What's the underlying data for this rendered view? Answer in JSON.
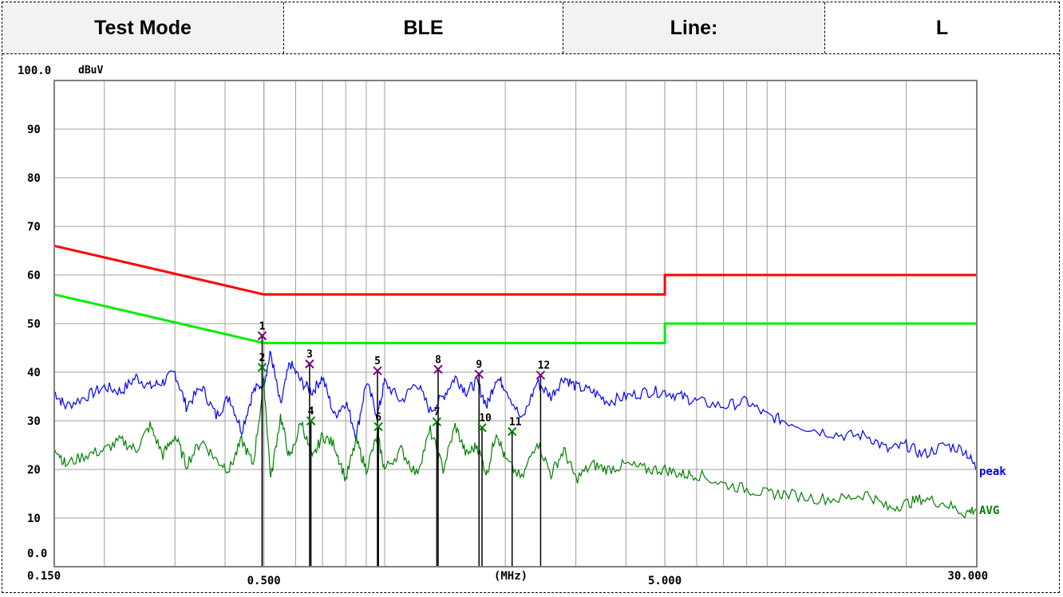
{
  "header": {
    "cells": [
      {
        "text": "Test Mode"
      },
      {
        "text": "BLE"
      },
      {
        "text": "Line:"
      },
      {
        "text": "L"
      }
    ]
  },
  "chart_data": {
    "type": "line",
    "title": "",
    "xlabel": "(MHz)",
    "ylabel": "dBuV",
    "x_scale": "log",
    "xlim": [
      0.15,
      30
    ],
    "ylim": [
      0,
      100
    ],
    "grid": true,
    "x_tick_labels": [
      {
        "value": 0.15,
        "label": "0.150"
      },
      {
        "value": 0.5,
        "label": "0.500"
      },
      {
        "value": 5,
        "label": "5.000"
      },
      {
        "value": 30,
        "label": "30.000"
      }
    ],
    "y_tick_labels": [
      {
        "value": 100,
        "label": "100.0"
      },
      {
        "value": 90,
        "label": "90"
      },
      {
        "value": 80,
        "label": "80"
      },
      {
        "value": 70,
        "label": "70"
      },
      {
        "value": 60,
        "label": "60"
      },
      {
        "value": 50,
        "label": "50"
      },
      {
        "value": 40,
        "label": "40"
      },
      {
        "value": 30,
        "label": "30"
      },
      {
        "value": 20,
        "label": "20"
      },
      {
        "value": 10,
        "label": "10"
      },
      {
        "value": 0,
        "label": "0.0"
      }
    ],
    "limit_lines": [
      {
        "color": "#ff0000",
        "points": [
          [
            0.15,
            66
          ],
          [
            0.5,
            56
          ],
          [
            5,
            56
          ],
          [
            5,
            60
          ],
          [
            30,
            60
          ]
        ]
      },
      {
        "color": "#00ee00",
        "points": [
          [
            0.15,
            56
          ],
          [
            0.5,
            46
          ],
          [
            5,
            46
          ],
          [
            5,
            50
          ],
          [
            30,
            50
          ]
        ]
      }
    ],
    "series": [
      {
        "name": "peak",
        "color": "#0000ff",
        "x": [
          0.15,
          0.16,
          0.18,
          0.2,
          0.22,
          0.24,
          0.26,
          0.28,
          0.3,
          0.32,
          0.35,
          0.38,
          0.41,
          0.44,
          0.47,
          0.5,
          0.52,
          0.55,
          0.58,
          0.62,
          0.66,
          0.7,
          0.75,
          0.8,
          0.85,
          0.9,
          0.96,
          1.0,
          1.1,
          1.2,
          1.3,
          1.4,
          1.5,
          1.6,
          1.7,
          1.8,
          1.9,
          2.0,
          2.2,
          2.4,
          2.6,
          2.8,
          3.0,
          3.3,
          3.6,
          4.0,
          4.5,
          5.0,
          5.5,
          6.0,
          7.0,
          8.0,
          9.0,
          10.0,
          12.0,
          14.0,
          16.0,
          18.0,
          20.0,
          22.0,
          25.0,
          28.0,
          30.0
        ],
        "y": [
          36,
          33,
          35,
          37,
          36,
          39,
          37,
          38,
          40,
          33,
          37,
          31,
          35,
          28,
          36,
          38,
          44,
          33,
          42,
          38,
          36,
          39,
          31,
          34,
          27,
          38,
          31,
          38,
          34,
          38,
          32,
          35,
          39,
          36,
          38,
          33,
          39,
          37,
          30,
          38,
          35,
          39,
          37,
          36,
          34,
          35,
          36,
          36,
          35,
          34,
          33,
          34,
          31,
          30,
          28,
          27,
          27,
          24,
          25,
          23,
          25,
          24,
          20
        ]
      },
      {
        "name": "AVG",
        "color": "#008000",
        "x": [
          0.15,
          0.16,
          0.18,
          0.2,
          0.22,
          0.24,
          0.26,
          0.28,
          0.3,
          0.32,
          0.35,
          0.38,
          0.41,
          0.44,
          0.47,
          0.5,
          0.52,
          0.55,
          0.58,
          0.62,
          0.66,
          0.7,
          0.75,
          0.8,
          0.85,
          0.9,
          0.96,
          1.0,
          1.1,
          1.2,
          1.3,
          1.4,
          1.5,
          1.6,
          1.7,
          1.8,
          1.9,
          2.0,
          2.2,
          2.4,
          2.6,
          2.8,
          3.0,
          3.3,
          3.6,
          4.0,
          4.5,
          5.0,
          5.5,
          6.0,
          7.0,
          8.0,
          9.0,
          10.0,
          12.0,
          14.0,
          16.0,
          18.0,
          20.0,
          22.0,
          25.0,
          28.0,
          30.0
        ],
        "y": [
          25,
          21,
          23,
          24,
          26,
          24,
          29,
          23,
          27,
          21,
          26,
          22,
          20,
          26,
          21,
          38,
          18,
          31,
          22,
          30,
          22,
          27,
          25,
          18,
          26,
          20,
          27,
          20,
          24,
          19,
          28,
          20,
          29,
          23,
          25,
          19,
          28,
          22,
          18,
          26,
          19,
          24,
          18,
          21,
          20,
          21,
          20,
          20,
          19,
          19,
          17,
          16,
          15,
          15,
          14,
          14,
          15,
          12,
          13,
          14,
          13,
          11,
          12
        ]
      }
    ],
    "markers": [
      {
        "label": "1",
        "x": 0.495,
        "y": 47.5,
        "type": "peak"
      },
      {
        "label": "2",
        "x": 0.495,
        "y": 41,
        "type": "avg"
      },
      {
        "label": "3",
        "x": 0.65,
        "y": 41.7,
        "type": "peak"
      },
      {
        "label": "4",
        "x": 0.655,
        "y": 30,
        "type": "avg"
      },
      {
        "label": "5",
        "x": 0.96,
        "y": 40.3,
        "type": "peak"
      },
      {
        "label": "6",
        "x": 0.965,
        "y": 28.8,
        "type": "avg"
      },
      {
        "label": "7",
        "x": 1.35,
        "y": 29.8,
        "type": "avg"
      },
      {
        "label": "8",
        "x": 1.36,
        "y": 40.6,
        "type": "peak"
      },
      {
        "label": "9",
        "x": 1.72,
        "y": 39.6,
        "type": "peak"
      },
      {
        "label": "10",
        "x": 1.75,
        "y": 28.6,
        "type": "avg"
      },
      {
        "label": "11",
        "x": 2.08,
        "y": 27.8,
        "type": "avg"
      },
      {
        "label": "12",
        "x": 2.45,
        "y": 39.4,
        "type": "peak"
      }
    ]
  }
}
